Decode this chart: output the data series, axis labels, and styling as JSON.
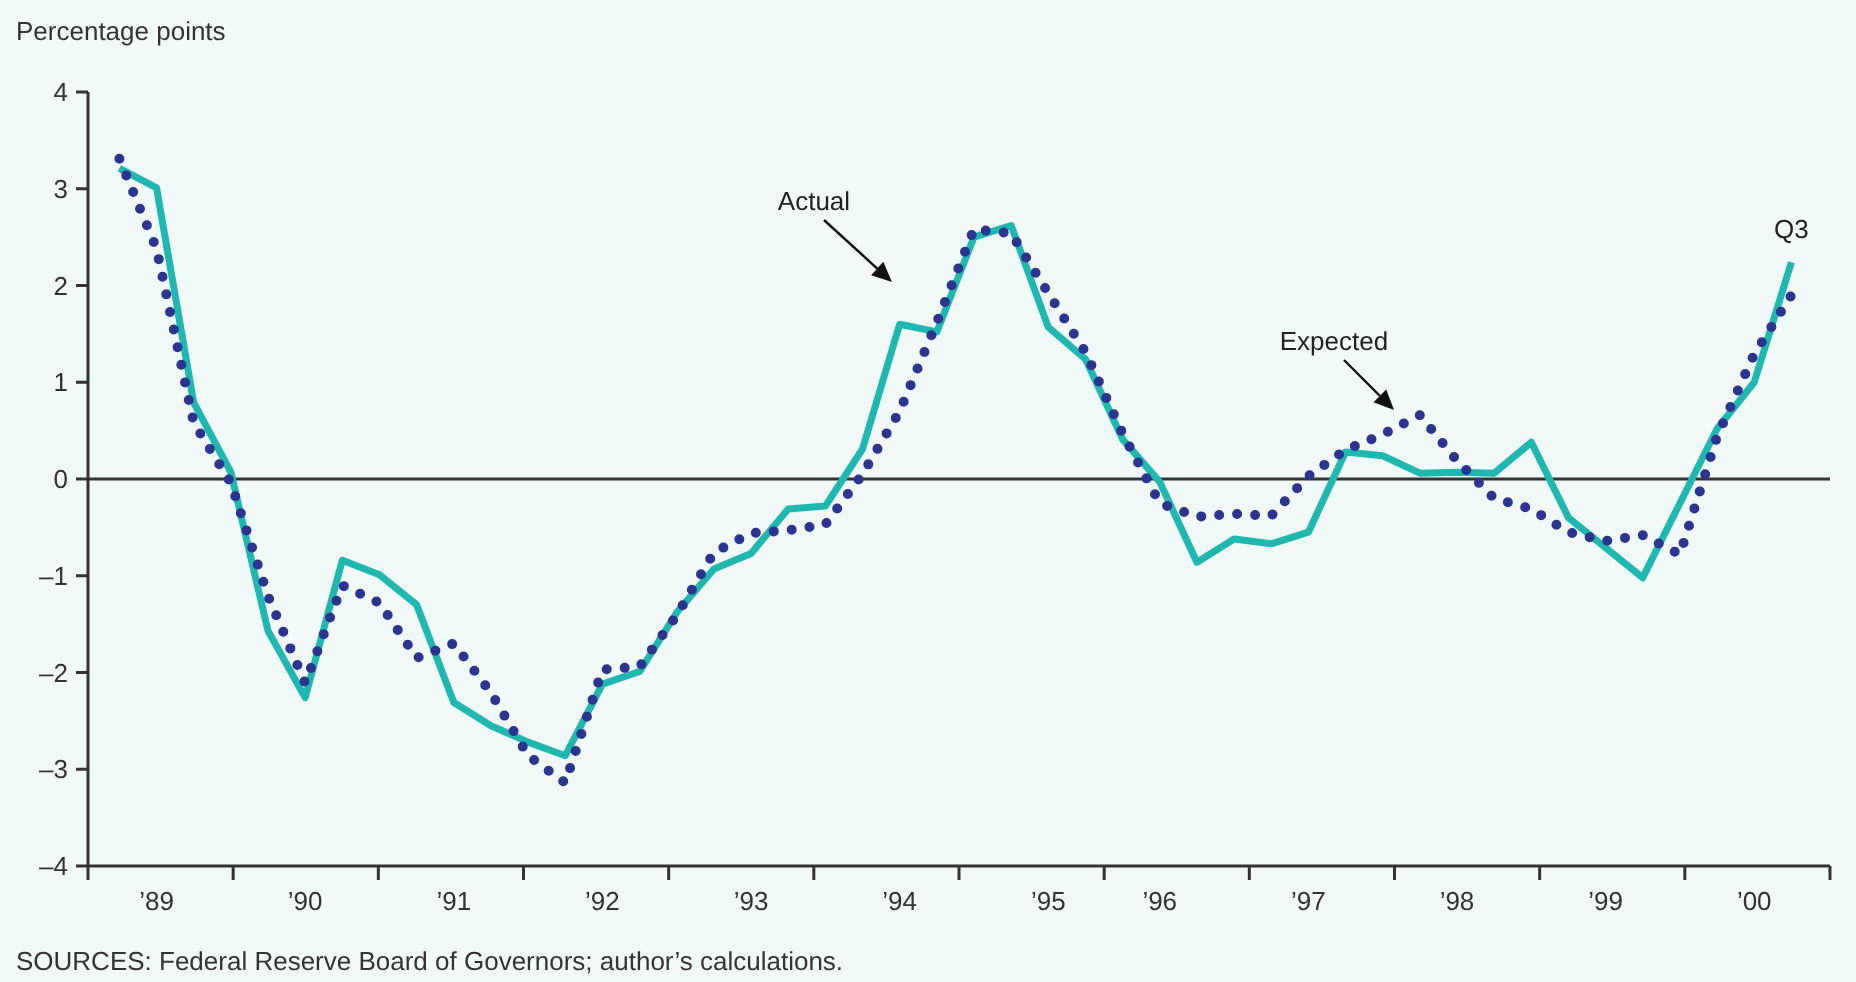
{
  "chart_data": {
    "type": "line",
    "ylabel": "Percentage points",
    "categories": [
      null,
      "’89",
      null,
      null,
      null,
      "’90",
      null,
      null,
      null,
      "’91",
      null,
      null,
      null,
      "’92",
      null,
      null,
      null,
      "’93",
      null,
      null,
      null,
      "’94",
      null,
      null,
      null,
      "’95",
      null,
      null,
      "’96",
      null,
      null,
      null,
      "’97",
      null,
      null,
      null,
      "’98",
      null,
      null,
      null,
      "’99",
      null,
      null,
      null,
      "’00",
      null
    ],
    "series": [
      {
        "color": "#1fb8b0",
        "line_style": "solid",
        "values": [
          3.21,
          3.01,
          0.79,
          0.07,
          -1.57,
          -2.26,
          -0.84,
          -0.99,
          -1.3,
          -2.31,
          -2.55,
          -2.72,
          -2.86,
          -2.12,
          -1.99,
          -1.38,
          -0.93,
          -0.77,
          -0.31,
          -0.28,
          0.31,
          1.6,
          1.52,
          2.5,
          2.62,
          1.57,
          1.24,
          0.41,
          -0.03,
          -0.86,
          -0.62,
          -0.67,
          -0.55,
          0.28,
          0.24,
          0.06,
          0.07,
          0.06,
          0.38,
          -0.4,
          -0.71,
          -1.02,
          -0.25,
          0.52,
          1.0,
          2.24
        ]
      },
      {
        "color": "#2b3590",
        "line_style": "dotted",
        "values": [
          3.31,
          2.38,
          0.58,
          -0.04,
          -1.21,
          -2.11,
          -1.1,
          -1.28,
          -1.85,
          -1.7,
          -2.21,
          -2.86,
          -3.14,
          -1.97,
          -1.94,
          -1.41,
          -0.76,
          -0.56,
          -0.53,
          -0.47,
          0.05,
          0.7,
          1.62,
          2.58,
          2.54,
          1.92,
          1.31,
          0.47,
          -0.25,
          -0.39,
          -0.36,
          -0.38,
          0.03,
          0.3,
          0.46,
          0.66,
          0.19,
          -0.2,
          -0.31,
          -0.55,
          -0.64,
          -0.58,
          -0.78,
          0.44,
          1.29,
          1.9
        ]
      }
    ],
    "ylim": [
      -4,
      4
    ],
    "yticks": [
      {
        "value": -4,
        "label": "–4"
      },
      {
        "value": -3,
        "label": "–3"
      },
      {
        "value": -2,
        "label": "–2"
      },
      {
        "value": -1,
        "label": "–1"
      },
      0,
      1,
      2,
      3,
      4
    ],
    "ref_lines": [
      {
        "axis": "y",
        "value": 0,
        "color": "#333333"
      }
    ],
    "grid": false,
    "marker": "none",
    "annotations": [
      "Actual",
      "Expected",
      {
        "text": "Q3",
        "y": 2.24
      },
      "SOURCES: Federal Reserve Board of Governors; author’s calculations."
    ]
  }
}
